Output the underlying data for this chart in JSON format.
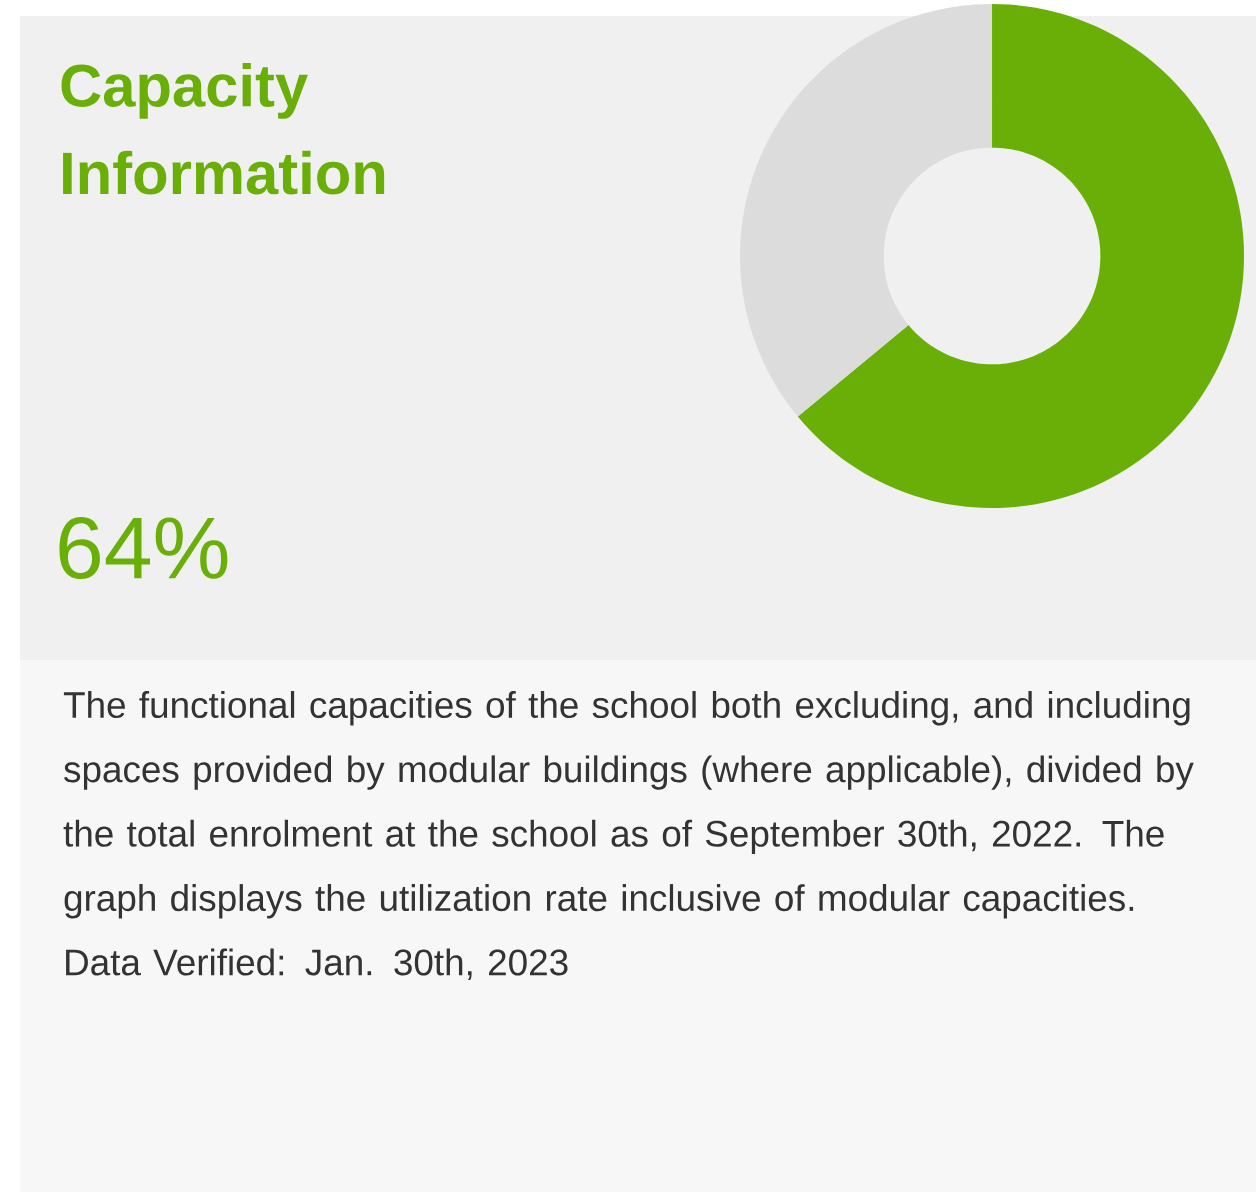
{
  "chart_data": {
    "type": "donut",
    "title": "Capacity Information",
    "categories": [
      null,
      null
    ],
    "values": [
      64,
      36
    ],
    "colors": [
      "#6aaf08",
      "#dcdcdc"
    ],
    "annotations": [
      "64%",
      "The functional capacities of the school both excluding, and including spaces provided by modular buildings (where applicable), divided by the total enrolment at the school as of September 30th, 2022. The graph displays the utilization rate inclusive of modular capacities. Data Verified: Jan. 30th, 2023"
    ]
  }
}
